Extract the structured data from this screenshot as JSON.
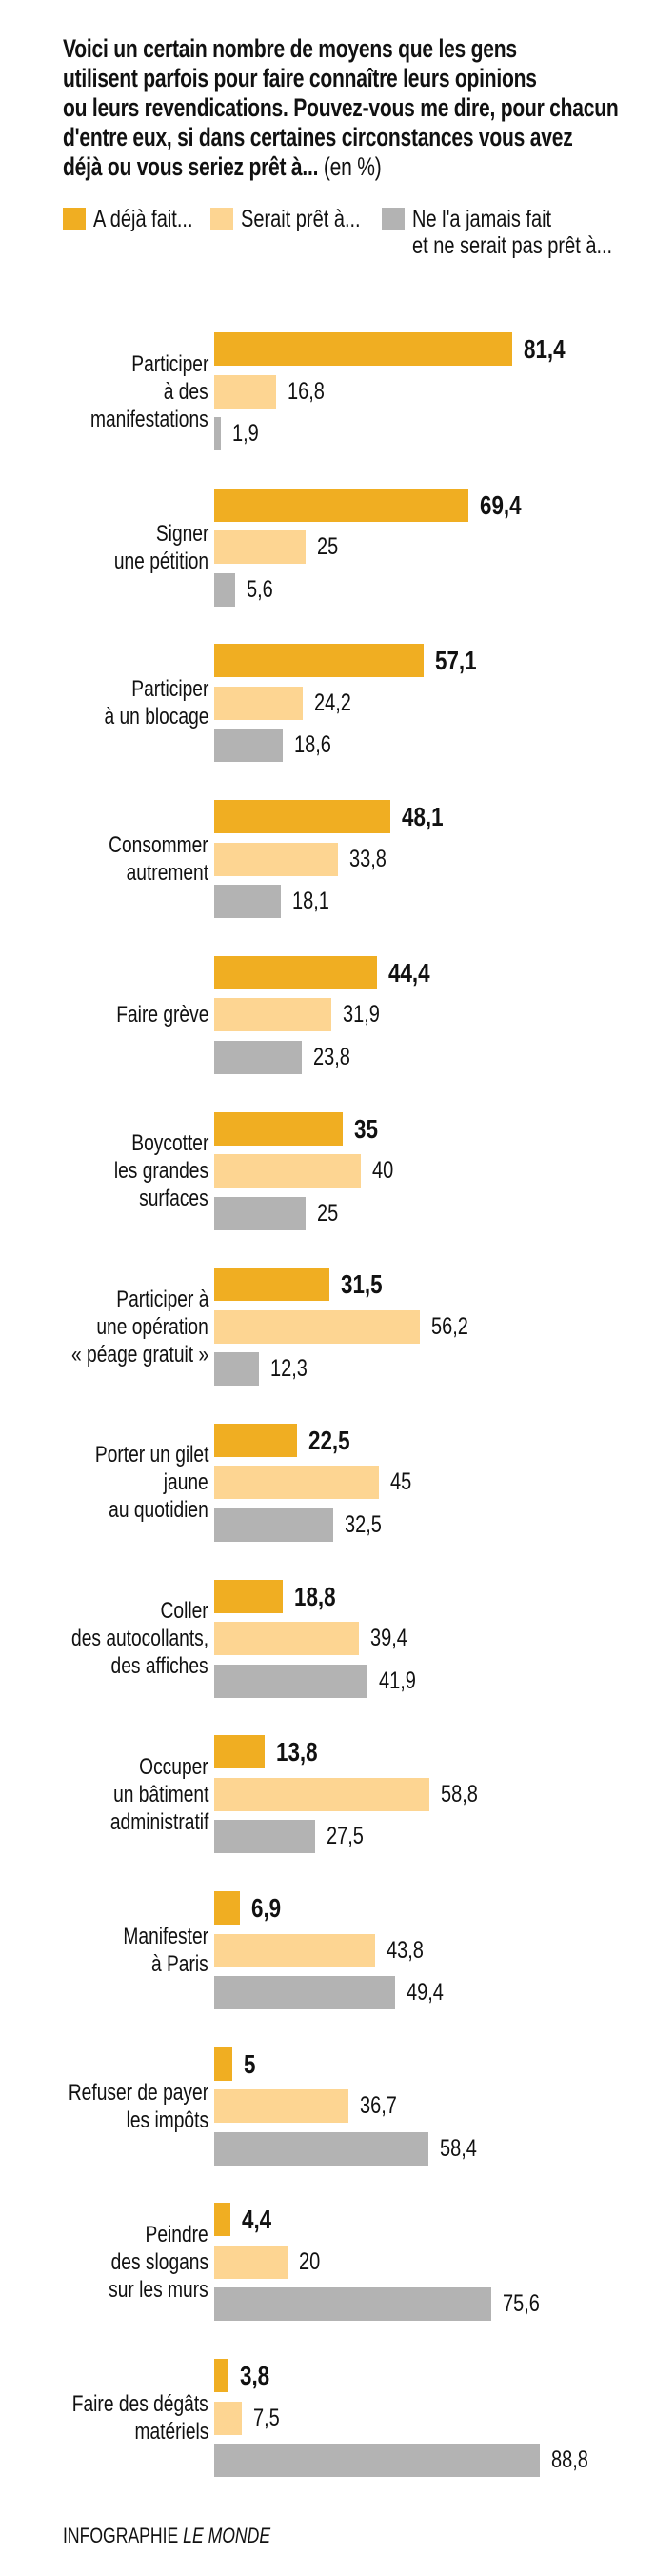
{
  "chart_data": {
    "type": "bar",
    "orientation": "horizontal",
    "title": "Voici un certain nombre de moyens que les gens utilisent parfois pour faire connaître leurs opinions ou leurs revendications. Pouvez-vous me dire, pour chacun d'entre eux, si dans certaines circonstances vous avez déjà ou vous seriez prêt à...",
    "title_lines": [
      "Voici un certain nombre de moyens que les gens",
      "utilisent parfois pour faire connaître leurs opinions",
      "ou leurs revendications. Pouvez-vous me dire, pour chacun",
      "d'entre eux, si dans certaines circonstances vous avez",
      "déjà ou vous seriez prêt à..."
    ],
    "unit": "(en %)",
    "xlim": [
      0,
      100
    ],
    "grid": false,
    "legend_placement": "top",
    "categories": [
      [
        "Participer",
        "à des",
        "manifestations"
      ],
      [
        "Signer",
        "une pétition"
      ],
      [
        "Participer",
        "à un blocage"
      ],
      [
        "Consommer",
        "autrement"
      ],
      [
        "Faire grève"
      ],
      [
        "Boycotter",
        "les grandes",
        "surfaces"
      ],
      [
        "Participer à",
        "une opération",
        "« péage gratuit »"
      ],
      [
        "Porter un gilet",
        "jaune",
        "au quotidien"
      ],
      [
        "Coller",
        "des autocollants,",
        "des affiches"
      ],
      [
        "Occuper",
        "un bâtiment",
        "administratif"
      ],
      [
        "Manifester",
        "à Paris"
      ],
      [
        "Refuser de payer",
        "les impôts"
      ],
      [
        "Peindre",
        "des slogans",
        "sur les murs"
      ],
      [
        "Faire des dégâts",
        "matériels"
      ]
    ],
    "series": [
      {
        "name": "A déjà fait...",
        "color": "#F0AE22",
        "labels": [
          "81,4",
          "69,4",
          "57,1",
          "48,1",
          "44,4",
          "35",
          "31,5",
          "22,5",
          "18,8",
          "13,8",
          "6,9",
          "5",
          "4,4",
          "3,8"
        ],
        "values": [
          81.4,
          69.4,
          57.1,
          48.1,
          44.4,
          35,
          31.5,
          22.5,
          18.8,
          13.8,
          6.9,
          5,
          4.4,
          3.8
        ]
      },
      {
        "name": "Serait prêt à...",
        "color": "#FDD592",
        "labels": [
          "16,8",
          "25",
          "24,2",
          "33,8",
          "31,9",
          "40",
          "56,2",
          "45",
          "39,4",
          "58,8",
          "43,8",
          "36,7",
          "20",
          "7,5"
        ],
        "values": [
          16.8,
          25,
          24.2,
          33.8,
          31.9,
          40,
          56.2,
          45,
          39.4,
          58.8,
          43.8,
          36.7,
          20,
          7.5
        ]
      },
      {
        "name": "Ne l'a jamais fait et ne serait pas prêt à...",
        "name_lines": [
          "Ne l'a jamais fait",
          "et ne serait pas prêt à..."
        ],
        "color": "#B3B3B3",
        "labels": [
          "1,9",
          "5,6",
          "18,6",
          "18,1",
          "23,8",
          "25",
          "12,3",
          "32,5",
          "41,9",
          "27,5",
          "49,4",
          "58,4",
          "75,6",
          "88,8"
        ],
        "values": [
          1.9,
          5.6,
          18.6,
          18.1,
          23.8,
          25,
          12.3,
          32.5,
          41.9,
          27.5,
          49.4,
          58.4,
          75.6,
          88.8
        ]
      }
    ]
  },
  "footer": {
    "prefix": "INFOGRAPHIE ",
    "brand": "LE MONDE"
  }
}
